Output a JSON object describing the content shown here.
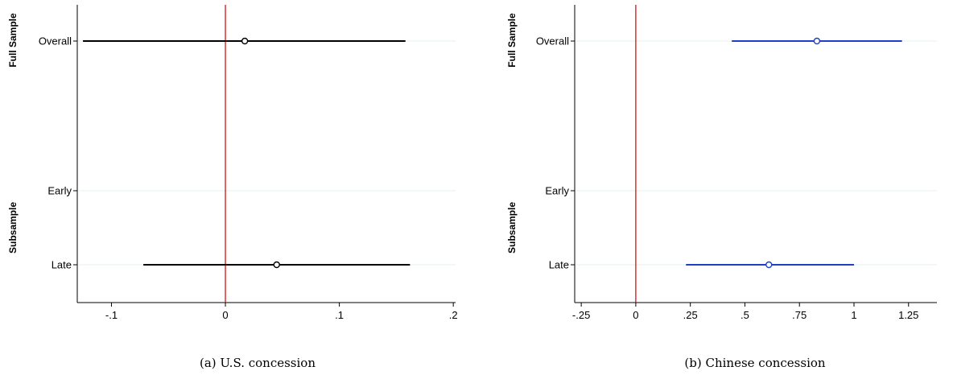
{
  "chart_data": [
    {
      "type": "scatter",
      "caption": "(a) U.S. concession",
      "groups": [
        "Full Sample",
        "Subsample"
      ],
      "categories": [
        "Overall",
        "Early",
        "Late"
      ],
      "xlim": [
        -0.13,
        0.202
      ],
      "xticks": [
        {
          "value": -0.1,
          "label": "-.1"
        },
        {
          "value": 0,
          "label": "0"
        },
        {
          "value": 0.1,
          "label": ".1"
        },
        {
          "value": 0.2,
          "label": ".2"
        }
      ],
      "reference_line": 0,
      "reference_color": "#cc0000",
      "color": "#000000",
      "estimates": [
        {
          "category": "Overall",
          "point": 0.017,
          "low": -0.125,
          "high": 0.158
        },
        {
          "category": "Late",
          "point": 0.045,
          "low": -0.072,
          "high": 0.162
        }
      ]
    },
    {
      "type": "scatter",
      "caption": "(b) Chinese concession",
      "groups": [
        "Full Sample",
        "Subsample"
      ],
      "categories": [
        "Overall",
        "Early",
        "Late"
      ],
      "xlim": [
        -0.28,
        1.38
      ],
      "xticks": [
        {
          "value": -0.25,
          "label": "-.25"
        },
        {
          "value": 0,
          "label": "0"
        },
        {
          "value": 0.25,
          "label": ".25"
        },
        {
          "value": 0.5,
          "label": ".5"
        },
        {
          "value": 0.75,
          "label": ".75"
        },
        {
          "value": 1,
          "label": "1"
        },
        {
          "value": 1.25,
          "label": "1.25"
        }
      ],
      "reference_line": 0,
      "reference_color": "#cc0000",
      "color": "#1f3fc4",
      "estimates": [
        {
          "category": "Overall",
          "point": 0.83,
          "low": 0.44,
          "high": 1.22
        },
        {
          "category": "Late",
          "point": 0.61,
          "low": 0.23,
          "high": 1.0
        }
      ]
    }
  ]
}
